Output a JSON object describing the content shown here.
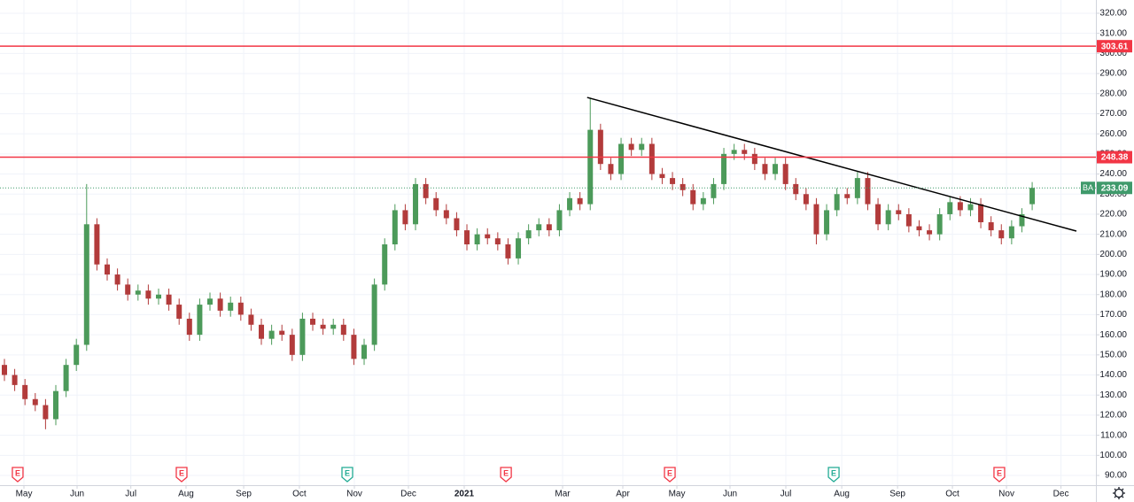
{
  "chart_data": {
    "type": "candlestick",
    "symbol": "BA",
    "last": 233.09,
    "up_color": "#4c9a5a",
    "down_color": "#b23b3b",
    "level_color": "#f23645",
    "last_color": "#3f9a6b",
    "grid": true,
    "ylim": [
      85.16,
      326.6
    ],
    "xlim": [
      -0.43,
      106.2
    ],
    "yticks": [
      {
        "value": 90,
        "label": "90.00"
      },
      {
        "value": 100,
        "label": "100.00"
      },
      {
        "value": 110,
        "label": "110.00"
      },
      {
        "value": 120,
        "label": "120.00"
      },
      {
        "value": 130,
        "label": "130.00"
      },
      {
        "value": 140,
        "label": "140.00"
      },
      {
        "value": 150,
        "label": "150.00"
      },
      {
        "value": 160,
        "label": "160.00"
      },
      {
        "value": 170,
        "label": "170.00"
      },
      {
        "value": 180,
        "label": "180.00"
      },
      {
        "value": 190,
        "label": "190.00"
      },
      {
        "value": 200,
        "label": "200.00"
      },
      {
        "value": 210,
        "label": "210.00"
      },
      {
        "value": 220,
        "label": "220.00"
      },
      {
        "value": 230,
        "label": "230.00"
      },
      {
        "value": 240,
        "label": "240.00"
      },
      {
        "value": 250,
        "label": "250.00"
      },
      {
        "value": 260,
        "label": "260.00"
      },
      {
        "value": 270,
        "label": "270.00"
      },
      {
        "value": 280,
        "label": "280.00"
      },
      {
        "value": 290,
        "label": "290.00"
      },
      {
        "value": 300,
        "label": "300.00"
      },
      {
        "value": 310,
        "label": "310.00"
      },
      {
        "value": 320,
        "label": "320.00"
      }
    ],
    "xticks": [
      {
        "value": 1.9,
        "label": "May"
      },
      {
        "value": 7.07,
        "label": "Jun"
      },
      {
        "value": 12.3,
        "label": "Jul"
      },
      {
        "value": 17.67,
        "label": "Aug"
      },
      {
        "value": 23.28,
        "label": "Sep"
      },
      {
        "value": 28.7,
        "label": "Oct"
      },
      {
        "value": 34.05,
        "label": "Nov"
      },
      {
        "value": 39.31,
        "label": "Dec"
      },
      {
        "value": 44.74,
        "label": "2021"
      },
      {
        "value": 54.31,
        "label": "Mar"
      },
      {
        "value": 60.17,
        "label": "Apr"
      },
      {
        "value": 65.43,
        "label": "May"
      },
      {
        "value": 70.6,
        "label": "Jun"
      },
      {
        "value": 76.03,
        "label": "Jul"
      },
      {
        "value": 81.47,
        "label": "Aug"
      },
      {
        "value": 86.9,
        "label": "Sep"
      },
      {
        "value": 92.24,
        "label": "Oct"
      },
      {
        "value": 97.5,
        "label": "Nov"
      },
      {
        "value": 102.8,
        "label": "Dec"
      }
    ],
    "open": [
      145,
      140,
      135,
      128,
      125,
      118,
      132,
      145,
      155,
      215,
      195,
      190,
      185,
      180,
      182,
      178,
      180,
      175,
      168,
      160,
      175,
      178,
      172,
      176,
      170,
      165,
      158,
      162,
      160,
      150,
      168,
      165,
      163,
      165,
      160,
      148,
      155,
      185,
      205,
      222,
      215,
      235,
      228,
      222,
      218,
      212,
      205,
      210,
      208,
      205,
      198,
      208,
      212,
      215,
      212,
      222,
      228,
      225,
      262,
      245,
      240,
      255,
      252,
      255,
      240,
      238,
      235,
      232,
      225,
      228,
      235,
      250,
      252,
      250,
      245,
      240,
      245,
      235,
      230,
      225,
      210,
      222,
      230,
      228,
      238,
      225,
      215,
      222,
      220,
      214,
      212,
      210,
      220,
      226,
      222,
      225,
      216,
      212,
      208,
      214,
      225
    ],
    "high": [
      148,
      143,
      138,
      131,
      128,
      135,
      148,
      158,
      235,
      218,
      198,
      193,
      188,
      185,
      185,
      183,
      183,
      178,
      171,
      178,
      181,
      181,
      179,
      179,
      173,
      168,
      165,
      165,
      163,
      171,
      171,
      168,
      168,
      168,
      163,
      158,
      188,
      208,
      225,
      225,
      238,
      238,
      231,
      225,
      221,
      215,
      213,
      213,
      211,
      208,
      211,
      215,
      218,
      218,
      225,
      231,
      231,
      278,
      265,
      248,
      258,
      258,
      258,
      258,
      243,
      241,
      238,
      235,
      231,
      238,
      253,
      255,
      255,
      253,
      248,
      248,
      248,
      238,
      233,
      228,
      225,
      233,
      233,
      241,
      241,
      228,
      225,
      225,
      223,
      217,
      215,
      223,
      229,
      229,
      228,
      228,
      219,
      215,
      217,
      223,
      236
    ],
    "low": [
      137,
      132,
      125,
      122,
      113,
      115,
      129,
      142,
      152,
      192,
      187,
      182,
      177,
      177,
      175,
      175,
      172,
      165,
      157,
      157,
      172,
      169,
      169,
      167,
      162,
      155,
      155,
      157,
      147,
      147,
      162,
      160,
      160,
      157,
      145,
      145,
      152,
      182,
      202,
      212,
      212,
      225,
      219,
      215,
      209,
      202,
      202,
      205,
      202,
      195,
      195,
      205,
      209,
      209,
      209,
      219,
      222,
      222,
      242,
      237,
      237,
      249,
      249,
      237,
      235,
      232,
      229,
      222,
      222,
      225,
      232,
      247,
      247,
      242,
      237,
      237,
      232,
      227,
      222,
      205,
      207,
      219,
      225,
      225,
      222,
      212,
      212,
      217,
      211,
      209,
      207,
      207,
      217,
      219,
      219,
      213,
      209,
      205,
      205,
      211,
      222
    ],
    "close": [
      140,
      135,
      128,
      125,
      118,
      132,
      145,
      155,
      215,
      195,
      190,
      185,
      180,
      182,
      178,
      180,
      175,
      168,
      160,
      175,
      178,
      172,
      176,
      170,
      165,
      158,
      162,
      160,
      150,
      168,
      165,
      163,
      165,
      160,
      148,
      155,
      185,
      205,
      222,
      215,
      235,
      228,
      222,
      218,
      212,
      205,
      210,
      208,
      205,
      198,
      208,
      212,
      215,
      212,
      222,
      228,
      225,
      262,
      245,
      240,
      255,
      252,
      255,
      240,
      238,
      235,
      232,
      225,
      228,
      235,
      250,
      252,
      250,
      245,
      240,
      245,
      235,
      230,
      225,
      210,
      222,
      230,
      228,
      238,
      225,
      215,
      222,
      220,
      214,
      212,
      210,
      220,
      226,
      222,
      225,
      216,
      212,
      208,
      214,
      220,
      233.09
    ],
    "levels": [
      303.61,
      248.38
    ],
    "trendline": {
      "x": [
        56.7,
        104.3
      ],
      "y": [
        278.1,
        211.6
      ],
      "color": "#000000"
    },
    "earnings": {
      "x": [
        1.29,
        17.24,
        33.36,
        48.8,
        64.74,
        80.69,
        96.8
      ],
      "labels": [
        "E",
        "E",
        "E",
        "E",
        "E",
        "E",
        "E"
      ],
      "colors": [
        "#f23645",
        "#f23645",
        "#22ab94",
        "#f23645",
        "#f23645",
        "#22ab94",
        "#f23645"
      ]
    }
  }
}
